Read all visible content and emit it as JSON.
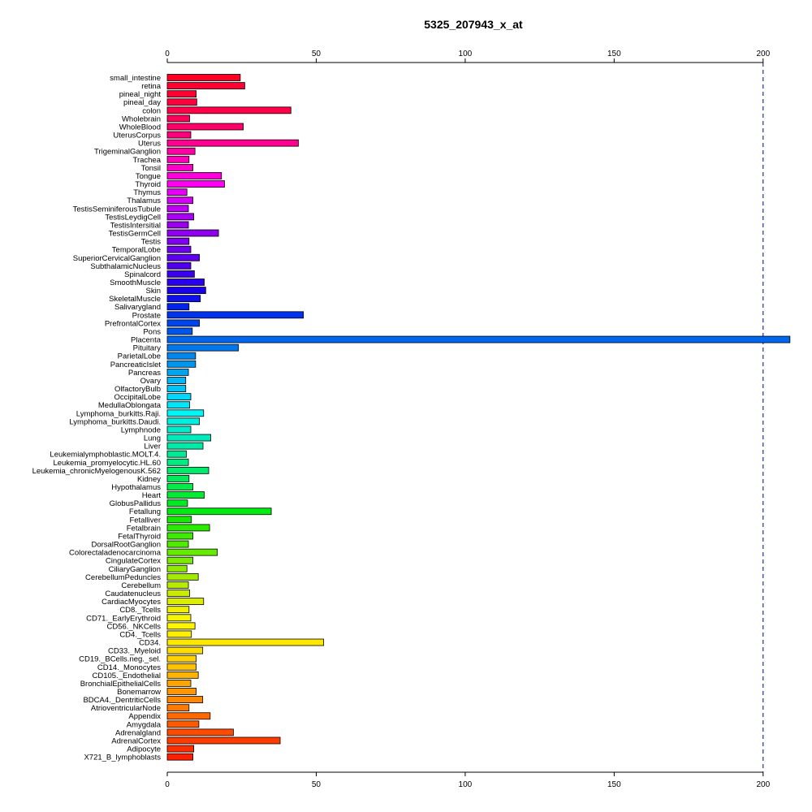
{
  "chart_data": {
    "type": "bar",
    "orientation": "horizontal",
    "title": "5325_207943_x_at",
    "xlabel": "",
    "ylabel": "",
    "xlim": [
      0,
      209
    ],
    "xticks": [
      0,
      50,
      100,
      150,
      200
    ],
    "reference_line": 200,
    "grid": false,
    "legend": "none",
    "categories": [
      "small_intestine",
      "retina",
      "pineal_night",
      "pineal_day",
      "colon",
      "Wholebrain",
      "WholeBlood",
      "UterusCorpus",
      "Uterus",
      "TrigeminalGanglion",
      "Trachea",
      "Tonsil",
      "Tongue",
      "Thyroid",
      "Thymus",
      "Thalamus",
      "TestisSeminiferousTubule",
      "TestisLeydigCell",
      "TestisIntersitial",
      "TestisGermCell",
      "Testis",
      "TemporalLobe",
      "SuperiorCervicalGanglion",
      "SubthalamicNucleus",
      "Spinalcord",
      "SmoothMuscle",
      "Skin",
      "SkeletalMuscle",
      "Salivarygland",
      "Prostate",
      "PrefrontalCortex",
      "Pons",
      "Placenta",
      "Pituitary",
      "ParietalLobe",
      "PancreaticIslet",
      "Pancreas",
      "Ovary",
      "OlfactoryBulb",
      "OccipitalLobe",
      "MedullaOblongata",
      "Lymphoma_burkitts.Raji.",
      "Lymphoma_burkitts.Daudi.",
      "Lymphnode",
      "Lung",
      "Liver",
      "Leukemialymphoblastic.MOLT.4.",
      "Leukemia_promyelocytic.HL.60",
      "Leukemia_chronicMyelogenousK.562",
      "Kidney",
      "Hypothalamus",
      "Heart",
      "GlobusPallidus",
      "Fetallung",
      "Fetalliver",
      "Fetalbrain",
      "FetalThyroid",
      "DorsalRootGanglion",
      "Colorectaladenocarcinoma",
      "CingulateCortex",
      "CiliaryGanglion",
      "CerebellumPeduncles",
      "Cerebellum",
      "Caudatenucleus",
      "CardiacMyocytes",
      "CD8._Tcells",
      "CD71._EarlyErythroid",
      "CD56._NKCells",
      "CD4._Tcells",
      "CD34.",
      "CD33._Myeloid",
      "CD19._BCells.neg._sel.",
      "CD14._Monocytes",
      "CD105._Endothelial",
      "BronchialEpithelialCells",
      "Bonemarrow",
      "BDCA4._DentriticCells",
      "AtrioventricularNode",
      "Appendix",
      "Amygdala",
      "Adrenalgland",
      "AdrenalCortex",
      "Adipocyte",
      "X721_B_lymphoblasts"
    ],
    "values": [
      24.5,
      26,
      9.7,
      9.9,
      41.5,
      7.5,
      25.5,
      7.9,
      44,
      9.3,
      7.3,
      8.6,
      18.2,
      19.2,
      6.6,
      8.6,
      7.1,
      8.9,
      7.1,
      17.2,
      7.3,
      7.9,
      10.8,
      7.9,
      9.1,
      12.4,
      12.9,
      11.1,
      7.3,
      45.7,
      10.8,
      8.4,
      209,
      23.9,
      9.5,
      9.5,
      7.1,
      6.2,
      6.2,
      7.9,
      7.5,
      12.2,
      10.8,
      7.9,
      14.6,
      12,
      6.4,
      7.1,
      13.9,
      7.3,
      8.6,
      12.4,
      6.8,
      34.9,
      8.1,
      14.2,
      8.6,
      7.1,
      16.8,
      8.6,
      6.6,
      10.4,
      7.1,
      7.5,
      12.2,
      7.3,
      7.9,
      9.3,
      8.1,
      52.5,
      11.9,
      9.7,
      9.7,
      10.4,
      7.9,
      9.7,
      11.9,
      7.3,
      14.4,
      10.6,
      22.2,
      37.9,
      8.9,
      8.6
    ],
    "colors": [
      "#FF0022",
      "#FF0033",
      "#FF0035",
      "#FF003F",
      "#FF0049",
      "#FF0058",
      "#FF0068",
      "#FF007B",
      "#FF0090",
      "#FF00A5",
      "#FF00B8",
      "#FF00CC",
      "#FF00DD",
      "#FF00F2",
      "#E600F8",
      "#D400F7",
      "#BE00F4",
      "#A800F2",
      "#9A00EE",
      "#8E00EE",
      "#7E00EE",
      "#6E00EE",
      "#5E00EE",
      "#4E00EE",
      "#3A00EE",
      "#2B00EE",
      "#1A00EE",
      "#0E10EE",
      "#0024EE",
      "#0033EE",
      "#0044EE",
      "#0055EE",
      "#0066EE",
      "#0077EE",
      "#0088EE",
      "#0096F0",
      "#00A5F2",
      "#00B6F4",
      "#00C6F7",
      "#00D7FA",
      "#00E6FA",
      "#00F5F5",
      "#00F0E0",
      "#00EDCD",
      "#00EBBB",
      "#00EBA8",
      "#00EB94",
      "#00EB80",
      "#00EB6C",
      "#00EB58",
      "#00EB45",
      "#00EB32",
      "#00EB20",
      "#00EB10",
      "#14EB00",
      "#28EB00",
      "#3CEB00",
      "#50EB00",
      "#66EB00",
      "#7AEB00",
      "#8EEB00",
      "#A2EB00",
      "#B6EB00",
      "#C8EB00",
      "#DCEE00",
      "#EEF000",
      "#F5F500",
      "#FFF500",
      "#FFEE00",
      "#FFE800",
      "#FFDD00",
      "#FFD200",
      "#FFC300",
      "#FFB400",
      "#FFA500",
      "#FF9600",
      "#FF8700",
      "#FF7800",
      "#FF6900",
      "#FF5A00",
      "#FF4B00",
      "#FF3C00",
      "#FF2D00",
      "#FF1E00"
    ]
  }
}
